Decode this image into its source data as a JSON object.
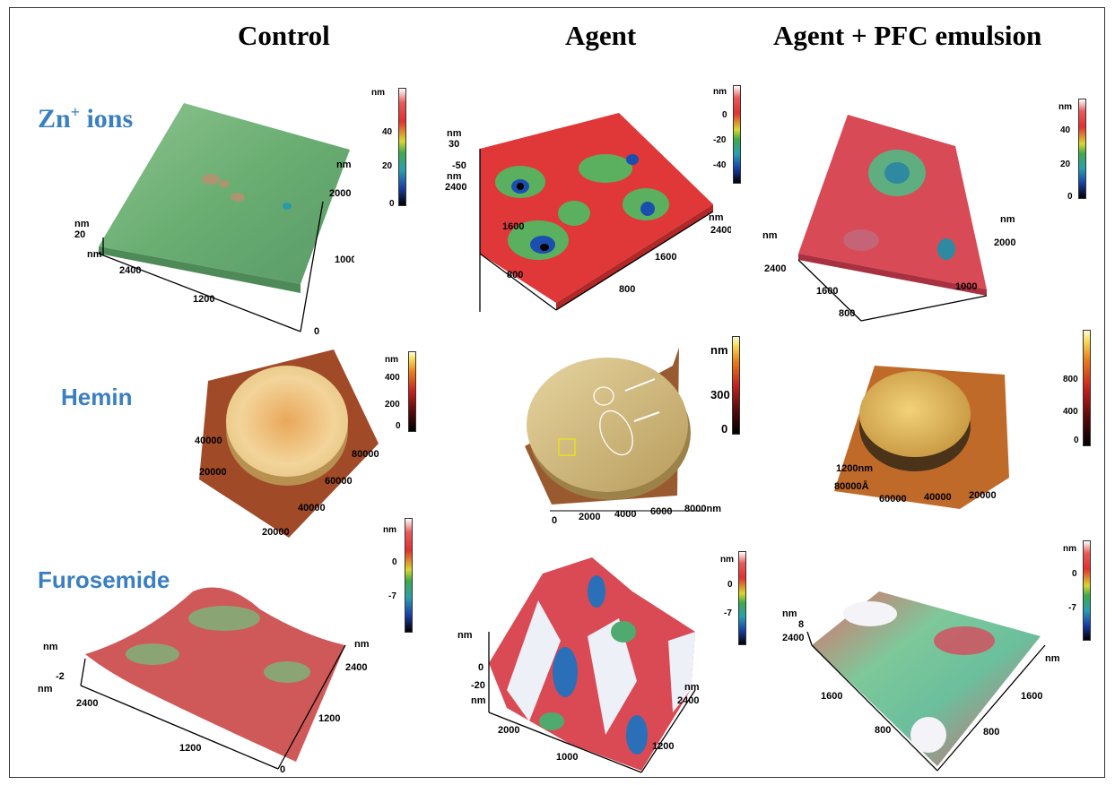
{
  "columns": [
    "Control",
    "Agent",
    "Agent + PFC emulsion"
  ],
  "rows": {
    "zn_prefix": "Zn",
    "zn_sup": "+",
    "zn_suffix": " ions",
    "hemin": "Hemin",
    "furosemide": "Furosemide"
  },
  "colorbars": {
    "zn_control": {
      "unit": "nm",
      "ticks": [
        "40",
        "20",
        "0"
      ]
    },
    "zn_agent": {
      "unit": "nm",
      "ticks": [
        "0",
        "-20",
        "-40"
      ]
    },
    "zn_pfc": {
      "unit": "nm",
      "ticks": [
        "40",
        "20",
        "0"
      ]
    },
    "hem_control": {
      "unit": "nm",
      "ticks": [
        "400",
        "200",
        "0"
      ]
    },
    "hem_agent": {
      "unit": "nm",
      "ticks": [
        "300",
        "0"
      ]
    },
    "hem_pfc": {
      "unit": "",
      "ticks": [
        "800",
        "400",
        "0"
      ]
    },
    "fur_control": {
      "unit": "nm",
      "ticks": [
        "0",
        "-7"
      ]
    },
    "fur_agent": {
      "unit": "nm",
      "ticks": [
        "0",
        "-7"
      ]
    },
    "fur_pfc": {
      "unit": "nm",
      "ticks": [
        "0",
        "-7"
      ]
    }
  },
  "axes": {
    "zn_control": {
      "t1": "nm",
      "t2": "2000",
      "t3": "1000",
      "t4": "0",
      "t5": "nm",
      "t6": "20",
      "t7": "nm",
      "t8": "2400",
      "t9": "1200"
    },
    "zn_agent": {
      "t1": "nm",
      "t2": "30",
      "t3": "-50",
      "t4": "nm",
      "t5": "2400",
      "t6": "1600",
      "t7": "800",
      "t8": "nm",
      "t9": "2400",
      "t10": "1600",
      "t11": "800"
    },
    "zn_pfc": {
      "t1": "nm",
      "t2": "2000",
      "t3": "1000",
      "t4": "nm",
      "t5": "2400",
      "t6": "1600",
      "t7": "800"
    },
    "hem_control": {
      "t1": "40000",
      "t2": "20000",
      "t3": "80000",
      "t4": "60000",
      "t5": "40000",
      "t6": "20000"
    },
    "hem_agent": {
      "t1": "0",
      "t2": "2000",
      "t3": "4000",
      "t4": "6000",
      "t5": "8000nm"
    },
    "hem_pfc": {
      "t1": "1200nm",
      "t2": "80000Å",
      "t3": "60000",
      "t4": "40000",
      "t5": "20000"
    },
    "fur_control": {
      "t1": "nm",
      "t2": "-2",
      "t3": "nm",
      "t4": "2400",
      "t5": "1200",
      "t6": "nm",
      "t7": "2400",
      "t8": "1200",
      "t9": "0"
    },
    "fur_agent": {
      "t1": "nm",
      "t2": "0",
      "t3": "-20",
      "t4": "nm",
      "t5": "2000",
      "t6": "1000",
      "t7": "nm",
      "t8": "2400",
      "t9": "1200"
    },
    "fur_pfc": {
      "t1": "nm",
      "t2": "8",
      "t3": "2400",
      "t4": "1600",
      "t5": "800",
      "t6": "nm",
      "t7": "1600",
      "t8": "800"
    }
  },
  "colors": {
    "row_label": "#3a7fc1",
    "surface_green": "#6ab070",
    "surface_red": "#d94a4a",
    "hemin_gold": "#d9b060"
  }
}
